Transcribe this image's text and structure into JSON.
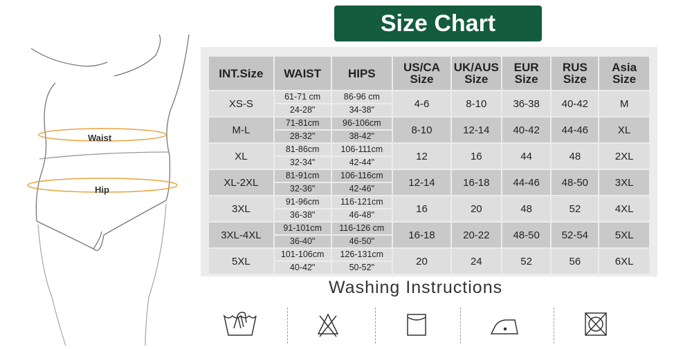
{
  "title": "Size Chart",
  "figure": {
    "waist_label": "Waist",
    "hip_label": "Hip",
    "arrow_color": "#e8a33c"
  },
  "table": {
    "headers": [
      "INT.Size",
      "WAIST",
      "HIPS",
      "US/CA Size",
      "UK/AUS Size",
      "EUR Size",
      "RUS Size",
      "Asia Size"
    ],
    "rows": [
      {
        "int": "XS-S",
        "waist_cm": "61-71 cm",
        "waist_in": "24-28\"",
        "hips_cm": "86-96 cm",
        "hips_in": "34-38\"",
        "us": "4-6",
        "uk": "8-10",
        "eur": "36-38",
        "rus": "40-42",
        "asia": "M"
      },
      {
        "int": "M-L",
        "waist_cm": "71-81cm",
        "waist_in": "28-32\"",
        "hips_cm": "96-106cm",
        "hips_in": "38-42\"",
        "us": "8-10",
        "uk": "12-14",
        "eur": "40-42",
        "rus": "44-46",
        "asia": "XL"
      },
      {
        "int": "XL",
        "waist_cm": "81-86cm",
        "waist_in": "32-34\"",
        "hips_cm": "106-111cm",
        "hips_in": "42-44\"",
        "us": "12",
        "uk": "16",
        "eur": "44",
        "rus": "48",
        "asia": "2XL"
      },
      {
        "int": "XL-2XL",
        "waist_cm": "81-91cm",
        "waist_in": "32-36\"",
        "hips_cm": "106-116cm",
        "hips_in": "42-46\"",
        "us": "12-14",
        "uk": "16-18",
        "eur": "44-46",
        "rus": "48-50",
        "asia": "3XL"
      },
      {
        "int": "3XL",
        "waist_cm": "91-96cm",
        "waist_in": "36-38\"",
        "hips_cm": "116-121cm",
        "hips_in": "46-48\"",
        "us": "16",
        "uk": "20",
        "eur": "48",
        "rus": "52",
        "asia": "4XL"
      },
      {
        "int": "3XL-4XL",
        "waist_cm": "91-101cm",
        "waist_in": "36-40\"",
        "hips_cm": "116-126 cm",
        "hips_in": "46-50\"",
        "us": "16-18",
        "uk": "20-22",
        "eur": "48-50",
        "rus": "52-54",
        "asia": "5XL"
      },
      {
        "int": "5XL",
        "waist_cm": "101-106cm",
        "waist_in": "40-42\"",
        "hips_cm": "126-131cm",
        "hips_in": "50-52\"",
        "us": "20",
        "uk": "24",
        "eur": "52",
        "rus": "56",
        "asia": "6XL"
      }
    ]
  },
  "washing": {
    "title": "Washing Instructions",
    "icons": [
      "hand-wash-icon",
      "do-not-bleach-icon",
      "dry-flat-icon",
      "iron-low-icon",
      "do-not-tumble-dry-icon"
    ]
  },
  "colors": {
    "banner": "#135c3e",
    "header": "#c4c4c4",
    "row_light": "#dedede",
    "row_dark": "#c9c9c9"
  }
}
